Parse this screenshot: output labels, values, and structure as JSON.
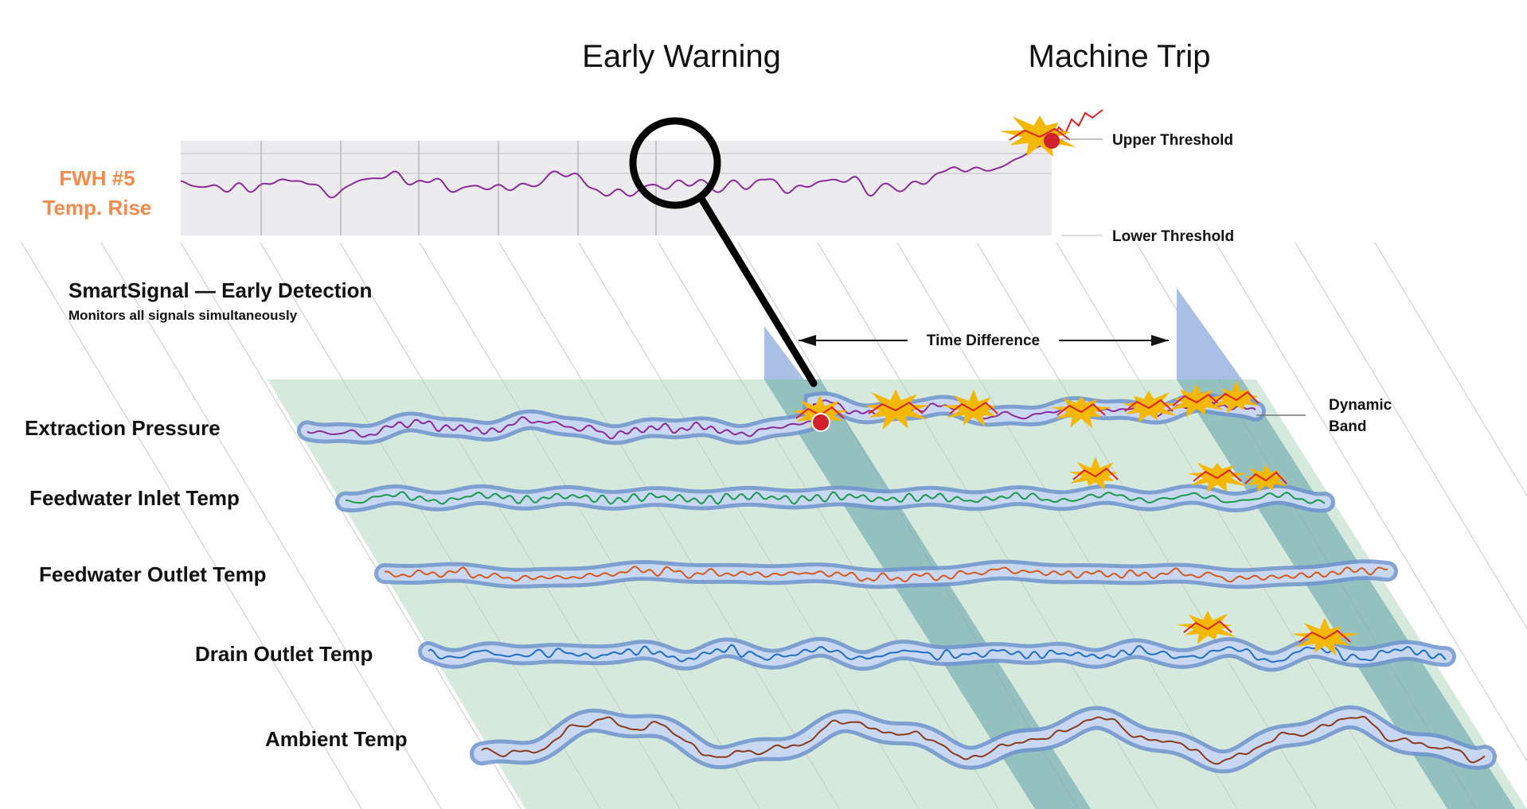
{
  "header": {
    "early_warning": "Early Warning",
    "machine_trip": "Machine Trip"
  },
  "top_panel": {
    "label_lines": [
      "FWH #5",
      "Temp. Rise"
    ],
    "upper_threshold": "Upper Threshold",
    "lower_threshold": "Lower Threshold"
  },
  "detection": {
    "title": "SmartSignal — Early Detection",
    "subtitle": "Monitors all signals simultaneously"
  },
  "time_difference": "Time Difference",
  "dynamic_band_lines": [
    "Dynamic",
    "Band"
  ],
  "signals": [
    {
      "label": "Extraction Pressure"
    },
    {
      "label": "Feedwater Inlet Temp"
    },
    {
      "label": "Feedwater Outlet Temp"
    },
    {
      "label": "Drain Outlet Temp"
    },
    {
      "label": "Ambient Temp"
    }
  ]
}
